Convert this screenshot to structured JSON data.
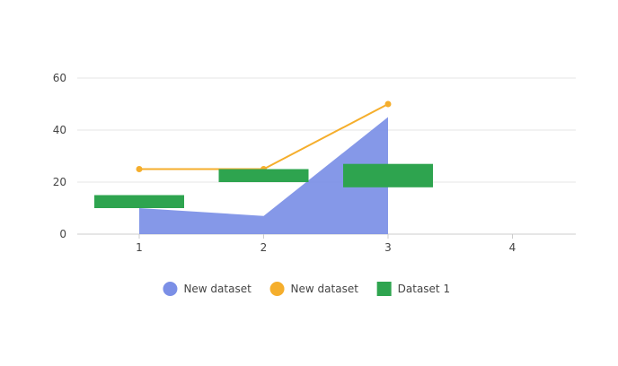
{
  "chart_data": {
    "type": "bar",
    "categories": [
      "1",
      "2",
      "3",
      "4"
    ],
    "ylim": [
      0,
      60
    ],
    "yticks": [
      0,
      20,
      40,
      60
    ],
    "grid": true,
    "legend_position": "bottom",
    "series": [
      {
        "name": "New dataset",
        "type": "area",
        "color": "#7b8fe6",
        "values": [
          10,
          7,
          45,
          null
        ]
      },
      {
        "name": "New dataset",
        "type": "line",
        "color": "#f5ae2c",
        "values": [
          25,
          25,
          50,
          null
        ]
      },
      {
        "name": "Dataset 1",
        "type": "floating-bar",
        "color": "#2ea44f",
        "ranges": [
          [
            10,
            15
          ],
          [
            20,
            25
          ],
          [
            18,
            27
          ],
          null
        ]
      }
    ]
  }
}
